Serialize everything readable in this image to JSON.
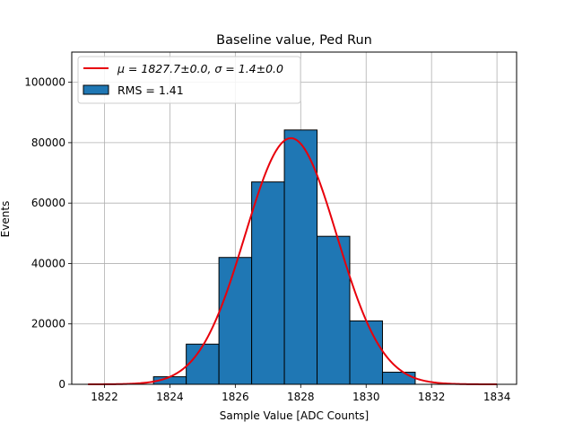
{
  "chart_data": {
    "type": "bar",
    "title": "Baseline value, Ped Run",
    "xlabel": "Sample Value [ADC Counts]",
    "ylabel": "Events",
    "xlim": [
      1821.0,
      1834.6
    ],
    "ylim": [
      0,
      110000
    ],
    "grid": true,
    "legend_position": "top-left",
    "xticks": [
      1822,
      1824,
      1826,
      1828,
      1830,
      1832,
      1834
    ],
    "yticks": [
      0,
      20000,
      40000,
      60000,
      80000,
      100000
    ],
    "bin_width": 1.0,
    "bins": [
      {
        "center": 1822,
        "value": 0
      },
      {
        "center": 1823,
        "value": 0
      },
      {
        "center": 1824,
        "value": 2500
      },
      {
        "center": 1825,
        "value": 13300
      },
      {
        "center": 1826,
        "value": 42000
      },
      {
        "center": 1827,
        "value": 67000
      },
      {
        "center": 1828,
        "value": 84200
      },
      {
        "center": 1829,
        "value": 49000
      },
      {
        "center": 1830,
        "value": 21000
      },
      {
        "center": 1831,
        "value": 4000
      },
      {
        "center": 1832,
        "value": 0
      },
      {
        "center": 1833,
        "value": 0
      },
      {
        "center": 1834,
        "value": 0
      }
    ],
    "fit": {
      "mu": 1827.7,
      "sigma": 1.4,
      "amplitude": 81500,
      "x_range": [
        1821.5,
        1834.0
      ]
    },
    "series": [
      {
        "name": "μ = 1827.7±0.0, σ = 1.4±0.0",
        "kind": "line"
      },
      {
        "name": "RMS = 1.41",
        "kind": "bar"
      }
    ],
    "colors": {
      "bar_fill": "#1f77b4",
      "bar_edge": "#000000",
      "fit_line": "#e8000b",
      "grid": "#b0b0b0"
    }
  }
}
